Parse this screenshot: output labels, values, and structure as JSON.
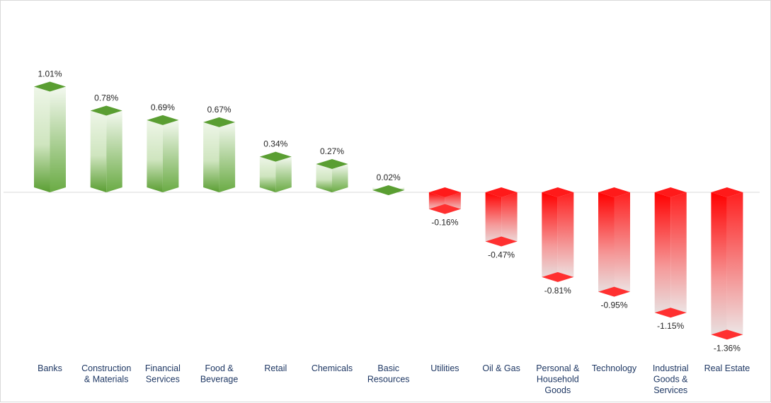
{
  "chart_data": {
    "type": "bar",
    "title": "",
    "xlabel": "",
    "ylabel": "",
    "categories": [
      [
        "Banks"
      ],
      [
        "Construction",
        "& Materials"
      ],
      [
        "Financial",
        "Services"
      ],
      [
        "Food &",
        "Beverage"
      ],
      [
        "Retail"
      ],
      [
        "Chemicals"
      ],
      [
        "Basic",
        "Resources"
      ],
      [
        "Utilities"
      ],
      [
        "Oil & Gas"
      ],
      [
        "Personal &",
        "Household",
        "Goods"
      ],
      [
        "Technology"
      ],
      [
        "Industrial",
        "Goods &",
        "Services"
      ],
      [
        "Real Estate"
      ]
    ],
    "values": [
      1.01,
      0.78,
      0.69,
      0.67,
      0.34,
      0.27,
      0.02,
      -0.16,
      -0.47,
      -0.81,
      -0.95,
      -1.15,
      -1.36
    ],
    "value_labels": [
      "1.01%",
      "0.78%",
      "0.69%",
      "0.67%",
      "0.34%",
      "0.27%",
      "0.02%",
      "-0.16%",
      "-0.47%",
      "-0.81%",
      "-0.95%",
      "-1.15%",
      "-1.36%"
    ],
    "units": "%",
    "ylim": [
      -1.36,
      1.01
    ],
    "grid": false,
    "legend": "none",
    "colors": {
      "positive_dark": "#5a9e32",
      "positive_light": "#eef6e8",
      "negative_dark": "#ff0000",
      "negative_light": "#e6e6e6",
      "baseline": "#d9d9d9",
      "category_text": "#1f3864"
    }
  }
}
